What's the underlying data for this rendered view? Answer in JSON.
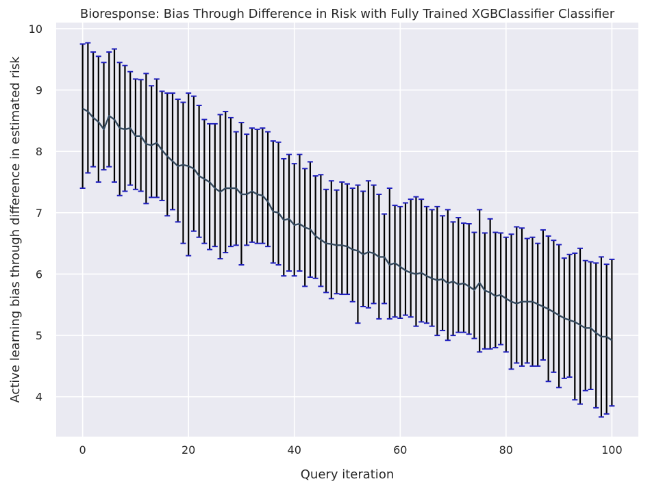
{
  "chart_data": {
    "type": "line",
    "title": "Bioresponse: Bias Through Difference in Risk with Fully Trained XGBClassifier Classifier",
    "xlabel": "Query iteration",
    "ylabel": "Active learning bias through difference in estimated risk",
    "xlim": [
      -5,
      105
    ],
    "ylim": [
      3.35,
      10.1
    ],
    "x_ticks": [
      0,
      20,
      40,
      60,
      80,
      100
    ],
    "y_ticks": [
      4,
      5,
      6,
      7,
      8,
      9,
      10
    ],
    "grid": true,
    "colors": {
      "background": "#eaeaf2",
      "grid": "#ffffff",
      "line": "#34495e",
      "errorbar": "#000000",
      "cap": "#1f1fbf"
    },
    "series": [
      {
        "x": [
          0,
          1,
          2,
          3,
          4,
          5,
          6,
          7,
          8,
          9,
          10,
          11,
          12,
          13,
          14,
          15,
          16,
          17,
          18,
          19,
          20,
          21,
          22,
          23,
          24,
          25,
          26,
          27,
          28,
          29,
          30,
          31,
          32,
          33,
          34,
          35,
          36,
          37,
          38,
          39,
          40,
          41,
          42,
          43,
          44,
          45,
          46,
          47,
          48,
          49,
          50,
          51,
          52,
          53,
          54,
          55,
          56,
          57,
          58,
          59,
          60,
          61,
          62,
          63,
          64,
          65,
          66,
          67,
          68,
          69,
          70,
          71,
          72,
          73,
          74,
          75,
          76,
          77,
          78,
          79,
          80,
          81,
          82,
          83,
          84,
          85,
          86,
          87,
          88,
          89,
          90,
          91,
          92,
          93,
          94,
          95,
          96,
          97,
          98,
          99,
          100
        ],
        "values": [
          8.7,
          8.65,
          8.55,
          8.48,
          8.36,
          8.58,
          8.52,
          8.38,
          8.36,
          8.38,
          8.25,
          8.25,
          8.12,
          8.1,
          8.14,
          8.02,
          7.92,
          7.84,
          7.76,
          7.78,
          7.76,
          7.72,
          7.6,
          7.55,
          7.5,
          7.4,
          7.34,
          7.4,
          7.4,
          7.4,
          7.3,
          7.3,
          7.35,
          7.3,
          7.28,
          7.18,
          7.02,
          7.0,
          6.88,
          6.9,
          6.8,
          6.82,
          6.76,
          6.73,
          6.62,
          6.56,
          6.5,
          6.49,
          6.47,
          6.47,
          6.45,
          6.4,
          6.38,
          6.32,
          6.36,
          6.34,
          6.28,
          6.28,
          6.15,
          6.18,
          6.12,
          6.06,
          6.02,
          6.0,
          6.02,
          5.97,
          5.93,
          5.9,
          5.92,
          5.85,
          5.88,
          5.83,
          5.85,
          5.8,
          5.74,
          5.86,
          5.73,
          5.7,
          5.64,
          5.66,
          5.6,
          5.55,
          5.52,
          5.55,
          5.55,
          5.55,
          5.51,
          5.47,
          5.43,
          5.38,
          5.33,
          5.28,
          5.25,
          5.22,
          5.17,
          5.12,
          5.12,
          5.04,
          4.98,
          4.98,
          4.92
        ],
        "lower": [
          7.4,
          7.65,
          7.75,
          7.5,
          7.7,
          7.75,
          7.5,
          7.28,
          7.35,
          7.45,
          7.38,
          7.35,
          7.15,
          7.25,
          7.25,
          7.2,
          6.95,
          7.05,
          6.85,
          6.5,
          6.3,
          6.7,
          6.6,
          6.5,
          6.4,
          6.45,
          6.25,
          6.35,
          6.45,
          6.47,
          6.15,
          6.47,
          6.52,
          6.5,
          6.5,
          6.45,
          6.18,
          6.15,
          5.97,
          6.05,
          5.97,
          6.05,
          5.8,
          5.95,
          5.93,
          5.8,
          5.7,
          5.6,
          5.68,
          5.67,
          5.67,
          5.55,
          5.2,
          5.47,
          5.45,
          5.52,
          5.27,
          5.52,
          5.27,
          5.3,
          5.28,
          5.33,
          5.3,
          5.15,
          5.22,
          5.2,
          5.15,
          5.0,
          5.08,
          4.92,
          5.0,
          5.05,
          5.05,
          5.02,
          4.95,
          4.73,
          4.78,
          4.78,
          4.8,
          4.85,
          4.73,
          4.45,
          4.55,
          4.5,
          4.55,
          4.5,
          4.5,
          4.6,
          4.25,
          4.4,
          4.15,
          4.3,
          4.32,
          3.95,
          3.88,
          4.1,
          4.12,
          3.82,
          3.67,
          3.72,
          3.85
        ],
        "upper": [
          9.75,
          9.77,
          9.62,
          9.55,
          9.45,
          9.62,
          9.67,
          9.45,
          9.4,
          9.3,
          9.18,
          9.17,
          9.27,
          9.07,
          9.18,
          8.98,
          8.95,
          8.95,
          8.85,
          8.8,
          8.95,
          8.9,
          8.75,
          8.52,
          8.45,
          8.45,
          8.6,
          8.65,
          8.55,
          8.32,
          8.47,
          8.28,
          8.38,
          8.36,
          8.38,
          8.32,
          8.17,
          8.15,
          7.88,
          7.95,
          7.8,
          7.95,
          7.72,
          7.83,
          7.6,
          7.62,
          7.38,
          7.52,
          7.37,
          7.5,
          7.47,
          7.4,
          7.45,
          7.35,
          7.52,
          7.45,
          7.3,
          6.98,
          7.4,
          7.12,
          7.1,
          7.16,
          7.22,
          7.26,
          7.22,
          7.1,
          7.05,
          7.1,
          6.95,
          7.05,
          6.85,
          6.92,
          6.83,
          6.82,
          6.68,
          7.05,
          6.67,
          6.9,
          6.68,
          6.67,
          6.6,
          6.65,
          6.77,
          6.75,
          6.58,
          6.6,
          6.5,
          6.72,
          6.62,
          6.55,
          6.48,
          6.26,
          6.32,
          6.34,
          6.42,
          6.22,
          6.2,
          6.18,
          6.28,
          6.16,
          6.24
        ]
      }
    ]
  }
}
